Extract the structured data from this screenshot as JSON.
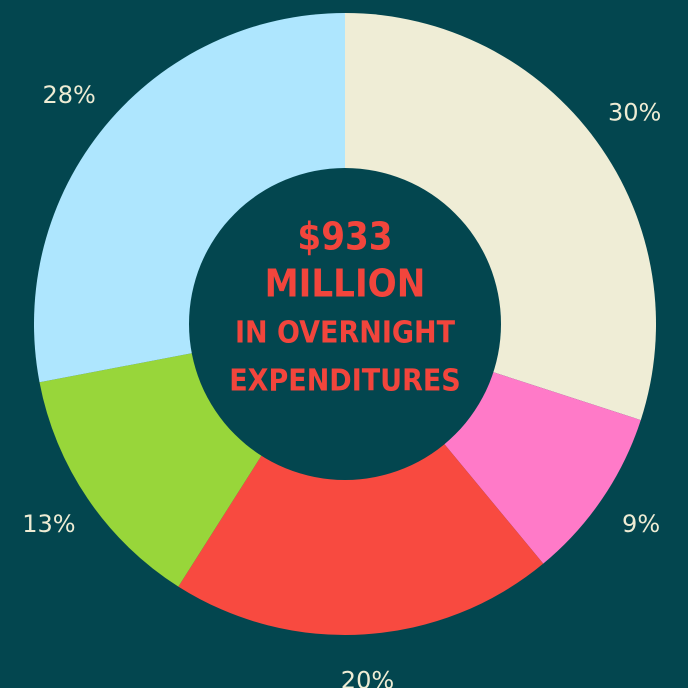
{
  "chart_data": {
    "type": "donut",
    "values": [
      30,
      9,
      20,
      13,
      28
    ],
    "value_labels": [
      "30%",
      "9%",
      "20%",
      "13%",
      "28%"
    ],
    "colors": [
      "#efedd6",
      "#ff7ac8",
      "#f84a40",
      "#98d63a",
      "#aee6fe"
    ],
    "center_label": [
      "$933",
      "MILLION",
      "IN OVERNIGHT",
      "EXPENDITURES"
    ]
  }
}
